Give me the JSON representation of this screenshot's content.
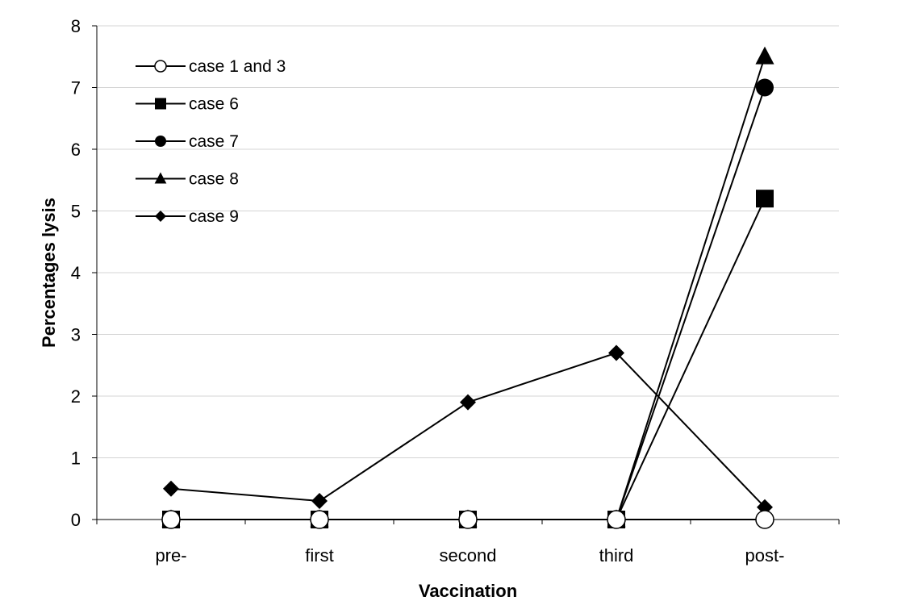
{
  "chart_data": {
    "type": "line",
    "title": "",
    "xlabel": "Vaccination",
    "ylabel": "Percentages lysis",
    "categories": [
      "pre-",
      "first",
      "second",
      "third",
      "post-"
    ],
    "ylim": [
      0,
      8
    ],
    "yticks": [
      0,
      1,
      2,
      3,
      4,
      5,
      6,
      7,
      8
    ],
    "grid": true,
    "legend_position": "top-left",
    "series": [
      {
        "name": "case 1 and 3",
        "marker": "open-circle",
        "values": [
          0,
          0,
          0,
          0,
          0
        ]
      },
      {
        "name": "case 6",
        "marker": "square",
        "values": [
          0,
          0,
          0,
          0,
          5.2
        ]
      },
      {
        "name": "case 7",
        "marker": "circle",
        "values": [
          0,
          0,
          0,
          0,
          7.0
        ]
      },
      {
        "name": "case 8",
        "marker": "triangle",
        "values": [
          0,
          0,
          0,
          0,
          7.5
        ]
      },
      {
        "name": "case 9",
        "marker": "diamond",
        "values": [
          0.5,
          0.3,
          1.9,
          2.7,
          0.2
        ]
      }
    ]
  }
}
